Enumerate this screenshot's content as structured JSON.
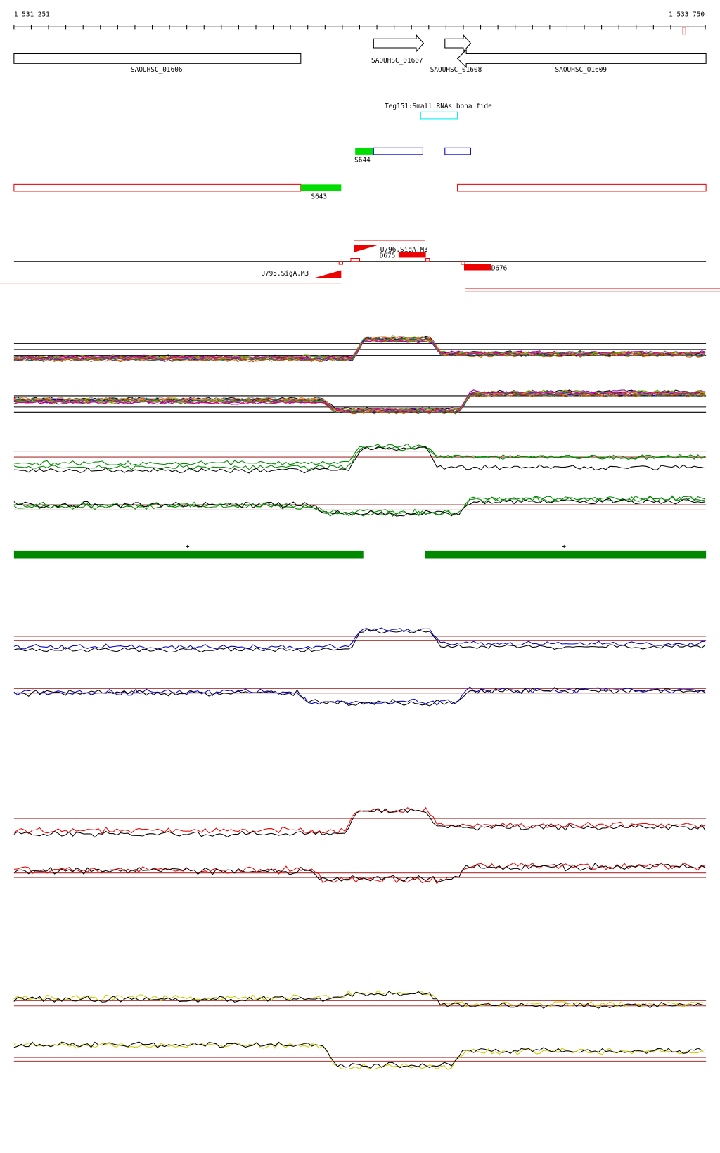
{
  "ruler": {
    "start": "1 531 251",
    "end": "1 533 750"
  },
  "genes": [
    "SAOUHSC_01606",
    "SAOUHSC_01607",
    "SAOUHSC_01608",
    "SAOUHSC_01609"
  ],
  "srna": "Teg151:Small RNAs bona fide",
  "segments": [
    "S644",
    "S643"
  ],
  "promoters": [
    "U796.SigA.M3",
    "D675",
    "U795.SigA.M3",
    "D676"
  ],
  "strands": [
    "+",
    "+"
  ]
}
